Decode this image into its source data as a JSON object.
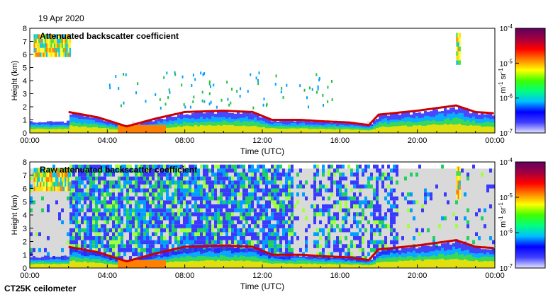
{
  "header": {
    "date": "19 Apr 2020"
  },
  "footer": {
    "instrument": "CT25K ceilometer"
  },
  "colors": {
    "background_gray": "#d9d9d9",
    "layer_red": "#cc0000",
    "colormap": [
      "#e6e6ff",
      "#4040ff",
      "#0000ff",
      "#00c0ff",
      "#00ff80",
      "#40ff00",
      "#ffff00",
      "#ff8000",
      "#ff0000",
      "#a00040",
      "#600060"
    ]
  },
  "chart_data": [
    {
      "type": "heatmap",
      "title": "Attenuated backscatter coefficient",
      "xlabel": "Time (UTC)",
      "ylabel": "Height (km)",
      "x_ticks": [
        "00:00",
        "04:00",
        "08:00",
        "12:00",
        "16:00",
        "20:00",
        "00:00"
      ],
      "y_ticks": [
        "0",
        "1",
        "2",
        "3",
        "4",
        "5",
        "6",
        "7",
        "8"
      ],
      "xlim_hours": [
        0,
        24
      ],
      "ylim_km": [
        0,
        8
      ],
      "colorbar": {
        "label_base": "m",
        "label_exp1": "-1",
        "label_mid": "sr",
        "label_exp2": "-1",
        "scale": "log",
        "ticks": [
          {
            "base": "10",
            "exp": "-7"
          },
          {
            "base": "10",
            "exp": "-6"
          },
          {
            "base": "10",
            "exp": "-5"
          },
          {
            "base": "10",
            "exp": "-4"
          }
        ]
      },
      "noise": "low",
      "cloud_layer_km": [
        [
          0,
          null
        ],
        [
          2.0,
          1.6
        ],
        [
          3.5,
          1.2
        ],
        [
          5.0,
          0.5
        ],
        [
          6.5,
          1.1
        ],
        [
          8.0,
          1.6
        ],
        [
          10.0,
          1.7
        ],
        [
          11.5,
          1.6
        ],
        [
          12.5,
          1.0
        ],
        [
          14.0,
          1.0
        ],
        [
          15.0,
          0.9
        ],
        [
          16.5,
          0.8
        ],
        [
          17.5,
          0.6
        ],
        [
          18.0,
          1.4
        ],
        [
          20.0,
          1.7
        ],
        [
          22.0,
          2.1
        ],
        [
          23.0,
          1.6
        ],
        [
          24.0,
          1.5
        ]
      ],
      "high_cloud_blocks": [
        {
          "t0": 0.2,
          "t1": 2.1,
          "h0": 5.8,
          "h1": 7.3
        },
        {
          "t0": 22.0,
          "t1": 22.2,
          "h0": 5.2,
          "h1": 7.3
        }
      ]
    },
    {
      "type": "heatmap",
      "title": "Raw attenuated backscatter coefficient",
      "xlabel": "Time (UTC)",
      "ylabel": "Height (km)",
      "x_ticks": [
        "00:00",
        "04:00",
        "08:00",
        "12:00",
        "16:00",
        "20:00",
        "00:00"
      ],
      "y_ticks": [
        "0",
        "1",
        "2",
        "3",
        "4",
        "5",
        "6",
        "7",
        "8"
      ],
      "xlim_hours": [
        0,
        24
      ],
      "ylim_km": [
        0,
        8
      ],
      "colorbar": {
        "label_base": "m",
        "label_exp1": "-1",
        "label_mid": "sr",
        "label_exp2": "-1",
        "scale": "log",
        "ticks": [
          {
            "base": "10",
            "exp": "-7"
          },
          {
            "base": "10",
            "exp": "-6"
          },
          {
            "base": "10",
            "exp": "-5"
          },
          {
            "base": "10",
            "exp": "-4"
          }
        ]
      },
      "noise": "high",
      "cloud_layer_km": [
        [
          0,
          null
        ],
        [
          2.0,
          1.6
        ],
        [
          3.5,
          1.2
        ],
        [
          5.0,
          0.5
        ],
        [
          6.5,
          1.1
        ],
        [
          8.0,
          1.6
        ],
        [
          10.0,
          1.7
        ],
        [
          11.5,
          1.6
        ],
        [
          12.5,
          1.0
        ],
        [
          14.0,
          1.0
        ],
        [
          15.0,
          0.9
        ],
        [
          16.5,
          0.8
        ],
        [
          17.5,
          0.6
        ],
        [
          18.0,
          1.4
        ],
        [
          20.0,
          1.7
        ],
        [
          22.0,
          2.1
        ],
        [
          23.0,
          1.6
        ],
        [
          24.0,
          1.5
        ]
      ],
      "high_cloud_blocks": [
        {
          "t0": 0.2,
          "t1": 2.1,
          "h0": 5.8,
          "h1": 7.3
        },
        {
          "t0": 22.0,
          "t1": 22.2,
          "h0": 5.2,
          "h1": 7.3
        }
      ]
    }
  ]
}
